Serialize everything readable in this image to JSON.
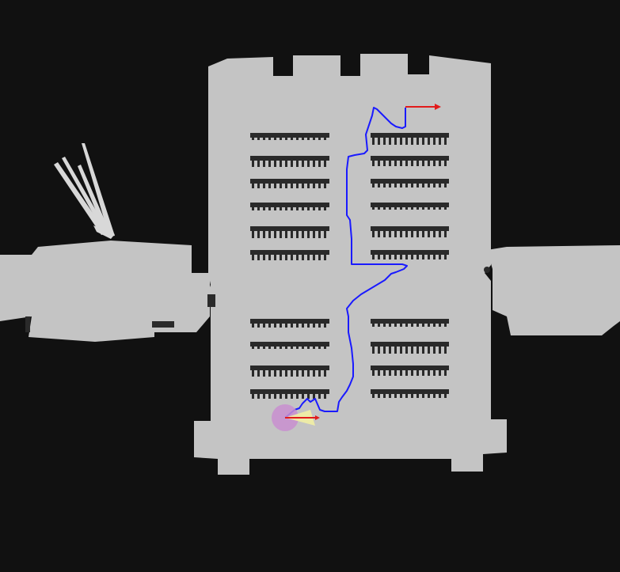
{
  "map": {
    "colors": {
      "unknown": "#111111",
      "free": "#c4c4c4",
      "obstacle": "#2a2a2a",
      "path": "#1a1aff",
      "goal_arrow": "#e21b1b",
      "robot_footprint": "#c98fd0",
      "robot_heading": "#e21b1b",
      "laser_cone": "#f2efa4",
      "laser_rays": "#d8d8d8"
    },
    "icons": {
      "robot": "robot-footprint-icon",
      "goal": "goal-arrow-icon"
    }
  }
}
